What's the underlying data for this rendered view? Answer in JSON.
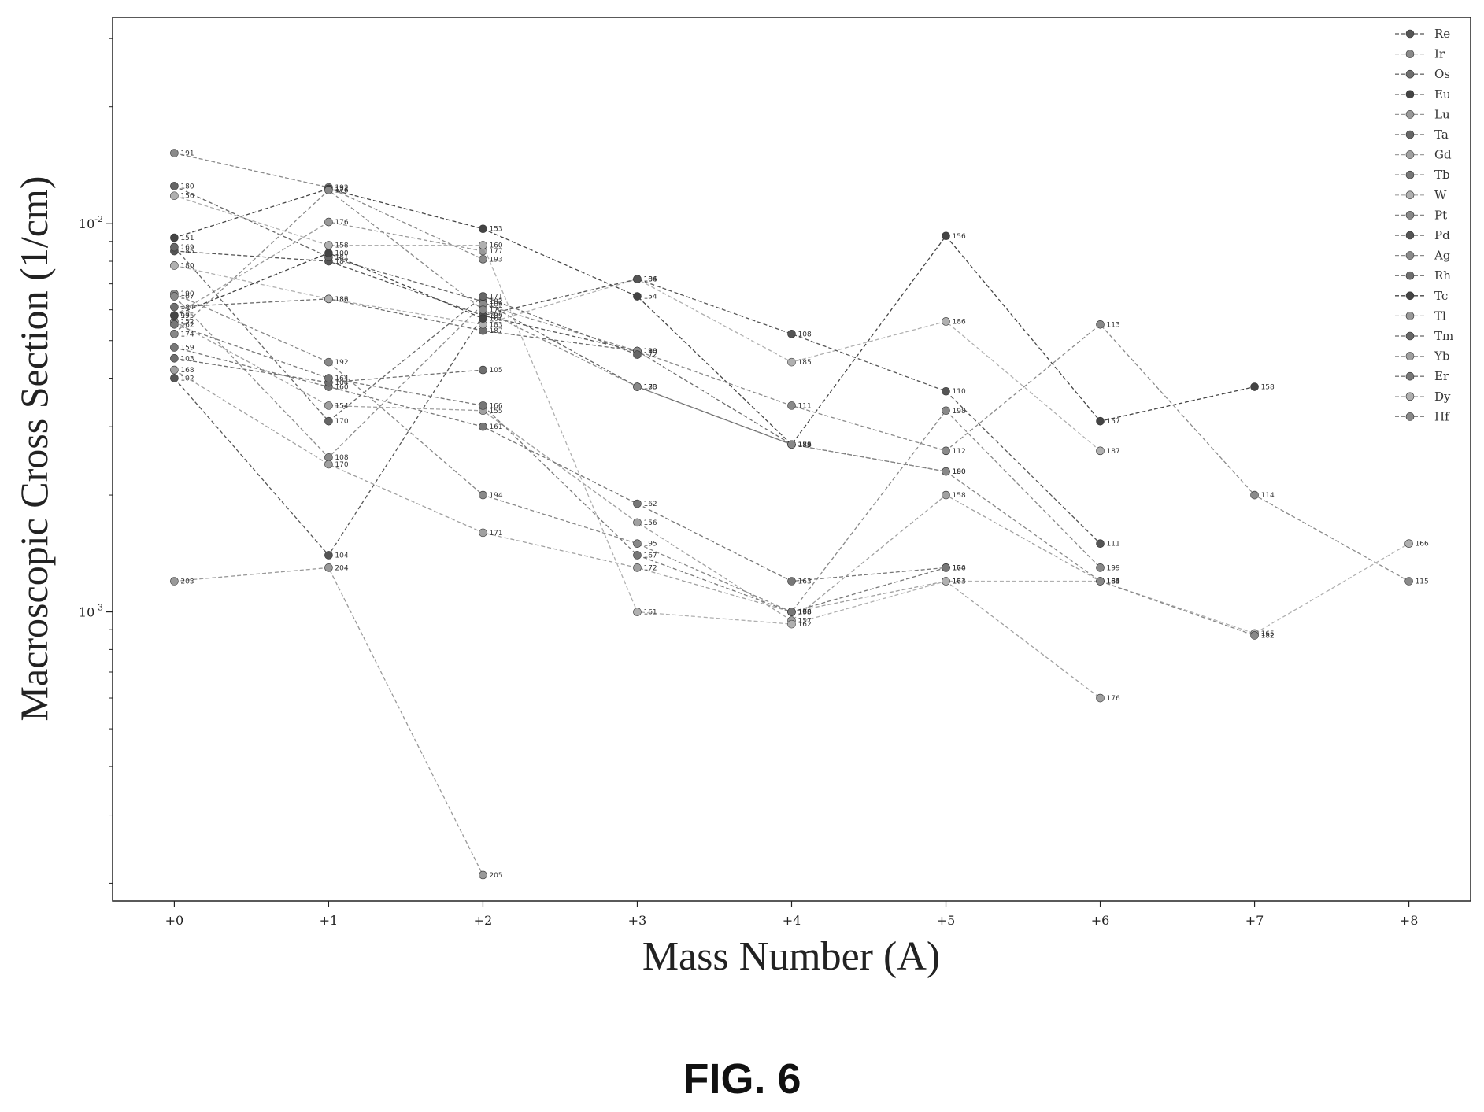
{
  "figure": {
    "caption": "FIG. 6"
  },
  "colors": {
    "axis": "#222222",
    "series": [
      "#555555",
      "#8a8a8a",
      "#6e6e6e",
      "#444444",
      "#999999",
      "#666666",
      "#a0a0a0",
      "#777777",
      "#b0b0b0",
      "#888888"
    ]
  },
  "chart_data": {
    "type": "line",
    "xlabel": "Mass Number (A)",
    "ylabel": "Macroscopic Cross Section (1/cm)",
    "yscale": "log",
    "ylim": [
      0.00018,
      0.034
    ],
    "xlim": [
      -0.4,
      8.4
    ],
    "x_ticks": [
      {
        "value": 0,
        "label": "+0"
      },
      {
        "value": 1,
        "label": "+1"
      },
      {
        "value": 2,
        "label": "+2"
      },
      {
        "value": 3,
        "label": "+3"
      },
      {
        "value": 4,
        "label": "+4"
      },
      {
        "value": 5,
        "label": "+5"
      },
      {
        "value": 6,
        "label": "+6"
      },
      {
        "value": 7,
        "label": "+7"
      },
      {
        "value": 8,
        "label": "+8"
      }
    ],
    "y_ticks": [
      {
        "value": 0.01,
        "base": "10",
        "exp": "-2"
      },
      {
        "value": 0.001,
        "base": "10",
        "exp": "-3"
      }
    ],
    "legend_position": "top-right",
    "series": [
      {
        "name": "Re",
        "points": [
          {
            "x": 0,
            "y": 0.0085,
            "label": "185"
          },
          {
            "x": 1,
            "y": 0.008,
            "label": "187"
          },
          {
            "x": 2,
            "y": 0.0058,
            "label": "189"
          },
          {
            "x": 3,
            "y": 0.0047,
            "label": "190"
          }
        ]
      },
      {
        "name": "Ir",
        "points": [
          {
            "x": 0,
            "y": 0.0152,
            "label": "191"
          },
          {
            "x": 1,
            "y": 0.0124,
            "label": "192"
          },
          {
            "x": 2,
            "y": 0.0081,
            "label": "193"
          }
        ]
      },
      {
        "name": "Os",
        "points": [
          {
            "x": 0,
            "y": 0.0061,
            "label": "184"
          },
          {
            "x": 1,
            "y": 0.0064,
            "label": "186"
          },
          {
            "x": 2,
            "y": 0.0053,
            "label": "187"
          },
          {
            "x": 3,
            "y": 0.0047,
            "label": "188"
          },
          {
            "x": 4,
            "y": 0.0027,
            "label": "189"
          },
          {
            "x": 5,
            "y": 0.0023,
            "label": "190"
          }
        ]
      },
      {
        "name": "Eu",
        "points": [
          {
            "x": 0,
            "y": 0.0092,
            "label": "151"
          },
          {
            "x": 1,
            "y": 0.0123,
            "label": "152"
          },
          {
            "x": 2,
            "y": 0.0097,
            "label": "153"
          },
          {
            "x": 3,
            "y": 0.0065,
            "label": "154"
          },
          {
            "x": 4,
            "y": 0.0027,
            "label": "155"
          },
          {
            "x": 5,
            "y": 0.0093,
            "label": "156"
          },
          {
            "x": 6,
            "y": 0.0031,
            "label": "157"
          },
          {
            "x": 7,
            "y": 0.0038,
            "label": "158"
          }
        ]
      },
      {
        "name": "Lu",
        "points": [
          {
            "x": 0,
            "y": 0.0058,
            "label": "175"
          },
          {
            "x": 1,
            "y": 0.0101,
            "label": "176"
          },
          {
            "x": 2,
            "y": 0.0085,
            "label": "177"
          }
        ]
      },
      {
        "name": "Ta",
        "points": [
          {
            "x": 0,
            "y": 0.0125,
            "label": "180"
          },
          {
            "x": 1,
            "y": 0.0082,
            "label": "181"
          },
          {
            "x": 2,
            "y": 0.0063,
            "label": "182"
          },
          {
            "x": 3,
            "y": 0.0038,
            "label": "183"
          },
          {
            "x": 4,
            "y": 0.0027,
            "label": "184"
          }
        ]
      },
      {
        "name": "Gd",
        "points": [
          {
            "x": 0,
            "y": 0.0056,
            "label": "152"
          },
          {
            "x": 1,
            "y": 0.0034,
            "label": "154"
          },
          {
            "x": 2,
            "y": 0.0033,
            "label": "155"
          },
          {
            "x": 3,
            "y": 0.0017,
            "label": "156"
          },
          {
            "x": 4,
            "y": 0.00095,
            "label": "157"
          },
          {
            "x": 5,
            "y": 0.002,
            "label": "158"
          },
          {
            "x": 6,
            "y": 0.0012,
            "label": "160"
          }
        ]
      },
      {
        "name": "Tb",
        "points": [
          {
            "x": 0,
            "y": 0.0048,
            "label": "159"
          },
          {
            "x": 1,
            "y": 0.0038,
            "label": "160"
          },
          {
            "x": 2,
            "y": 0.003,
            "label": "161"
          },
          {
            "x": 3,
            "y": 0.0019,
            "label": "162"
          },
          {
            "x": 4,
            "y": 0.0012,
            "label": "163"
          },
          {
            "x": 5,
            "y": 0.0013,
            "label": "164"
          }
        ]
      },
      {
        "name": "W",
        "points": [
          {
            "x": 0,
            "y": 0.0078,
            "label": "180"
          },
          {
            "x": 1,
            "y": 0.0064,
            "label": "182"
          },
          {
            "x": 2,
            "y": 0.0055,
            "label": "183"
          },
          {
            "x": 3,
            "y": 0.0072,
            "label": "184"
          },
          {
            "x": 4,
            "y": 0.0044,
            "label": "185"
          },
          {
            "x": 5,
            "y": 0.0056,
            "label": "186"
          },
          {
            "x": 6,
            "y": 0.0026,
            "label": "187"
          }
        ]
      },
      {
        "name": "Pt",
        "points": [
          {
            "x": 0,
            "y": 0.0066,
            "label": "190"
          },
          {
            "x": 1,
            "y": 0.0044,
            "label": "192"
          },
          {
            "x": 2,
            "y": 0.002,
            "label": "194"
          },
          {
            "x": 3,
            "y": 0.0015,
            "label": "195"
          },
          {
            "x": 4,
            "y": 0.001,
            "label": "196"
          },
          {
            "x": 5,
            "y": 0.0033,
            "label": "198"
          },
          {
            "x": 6,
            "y": 0.0013,
            "label": "199"
          }
        ]
      },
      {
        "name": "Pd",
        "points": [
          {
            "x": 0,
            "y": 0.004,
            "label": "102"
          },
          {
            "x": 1,
            "y": 0.0014,
            "label": "104"
          },
          {
            "x": 2,
            "y": 0.0058,
            "label": "105"
          },
          {
            "x": 3,
            "y": 0.0072,
            "label": "106"
          },
          {
            "x": 4,
            "y": 0.0052,
            "label": "108"
          },
          {
            "x": 5,
            "y": 0.0037,
            "label": "110"
          },
          {
            "x": 6,
            "y": 0.0015,
            "label": "111"
          }
        ]
      },
      {
        "name": "Ag",
        "points": [
          {
            "x": 0,
            "y": 0.0065,
            "label": "107"
          },
          {
            "x": 1,
            "y": 0.0025,
            "label": "108"
          },
          {
            "x": 2,
            "y": 0.0062,
            "label": "109"
          },
          {
            "x": 3,
            "y": 0.0047,
            "label": "110"
          },
          {
            "x": 4,
            "y": 0.0034,
            "label": "111"
          },
          {
            "x": 5,
            "y": 0.0026,
            "label": "112"
          },
          {
            "x": 6,
            "y": 0.0055,
            "label": "113"
          },
          {
            "x": 7,
            "y": 0.002,
            "label": "114"
          },
          {
            "x": 8,
            "y": 0.0012,
            "label": "115"
          }
        ]
      },
      {
        "name": "Rh",
        "points": [
          {
            "x": 0,
            "y": 0.0045,
            "label": "103"
          },
          {
            "x": 1,
            "y": 0.0039,
            "label": "104"
          },
          {
            "x": 2,
            "y": 0.0042,
            "label": "105"
          }
        ]
      },
      {
        "name": "Tc",
        "points": [
          {
            "x": 0,
            "y": 0.0058,
            "label": "99"
          },
          {
            "x": 1,
            "y": 0.0084,
            "label": "100"
          },
          {
            "x": 2,
            "y": 0.0057,
            "label": "101"
          }
        ]
      },
      {
        "name": "Tl",
        "points": [
          {
            "x": 0,
            "y": 0.0012,
            "label": "203"
          },
          {
            "x": 1,
            "y": 0.0013,
            "label": "204"
          },
          {
            "x": 2,
            "y": 0.00021,
            "label": "205"
          }
        ]
      },
      {
        "name": "Tm",
        "points": [
          {
            "x": 0,
            "y": 0.0087,
            "label": "169"
          },
          {
            "x": 1,
            "y": 0.0031,
            "label": "170"
          },
          {
            "x": 2,
            "y": 0.0065,
            "label": "171"
          },
          {
            "x": 3,
            "y": 0.0046,
            "label": "172"
          }
        ]
      },
      {
        "name": "Yb",
        "points": [
          {
            "x": 0,
            "y": 0.0042,
            "label": "168"
          },
          {
            "x": 1,
            "y": 0.0024,
            "label": "170"
          },
          {
            "x": 2,
            "y": 0.0016,
            "label": "171"
          },
          {
            "x": 3,
            "y": 0.0013,
            "label": "172"
          },
          {
            "x": 4,
            "y": 0.001,
            "label": "173"
          },
          {
            "x": 5,
            "y": 0.0012,
            "label": "174"
          },
          {
            "x": 6,
            "y": 0.0006,
            "label": "176"
          }
        ]
      },
      {
        "name": "Er",
        "points": [
          {
            "x": 0,
            "y": 0.0055,
            "label": "162"
          },
          {
            "x": 1,
            "y": 0.004,
            "label": "164"
          },
          {
            "x": 2,
            "y": 0.0034,
            "label": "166"
          },
          {
            "x": 3,
            "y": 0.0014,
            "label": "167"
          },
          {
            "x": 4,
            "y": 0.001,
            "label": "168"
          },
          {
            "x": 5,
            "y": 0.0013,
            "label": "170"
          }
        ]
      },
      {
        "name": "Dy",
        "points": [
          {
            "x": 0,
            "y": 0.0118,
            "label": "156"
          },
          {
            "x": 1,
            "y": 0.0088,
            "label": "158"
          },
          {
            "x": 2,
            "y": 0.0088,
            "label": "160"
          },
          {
            "x": 3,
            "y": 0.001,
            "label": "161"
          },
          {
            "x": 4,
            "y": 0.00093,
            "label": "162"
          },
          {
            "x": 5,
            "y": 0.0012,
            "label": "163"
          },
          {
            "x": 6,
            "y": 0.0012,
            "label": "164"
          },
          {
            "x": 7,
            "y": 0.00088,
            "label": "165"
          },
          {
            "x": 8,
            "y": 0.0015,
            "label": "166"
          }
        ]
      },
      {
        "name": "Hf",
        "points": [
          {
            "x": 0,
            "y": 0.0052,
            "label": "174"
          },
          {
            "x": 1,
            "y": 0.0122,
            "label": "176"
          },
          {
            "x": 2,
            "y": 0.006,
            "label": "177"
          },
          {
            "x": 3,
            "y": 0.0038,
            "label": "178"
          },
          {
            "x": 4,
            "y": 0.0027,
            "label": "179"
          },
          {
            "x": 5,
            "y": 0.0023,
            "label": "180"
          },
          {
            "x": 6,
            "y": 0.0012,
            "label": "181"
          },
          {
            "x": 7,
            "y": 0.00087,
            "label": "182"
          }
        ]
      }
    ]
  }
}
